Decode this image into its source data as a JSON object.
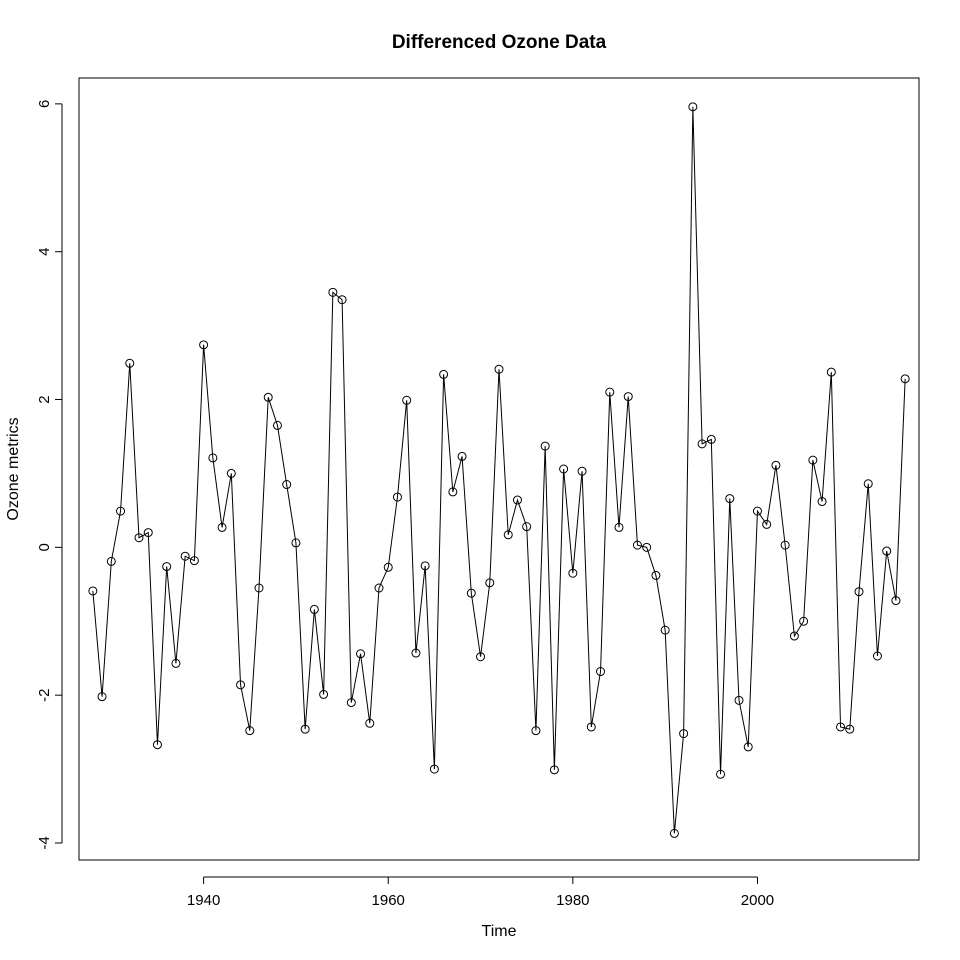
{
  "chart_data": {
    "type": "line",
    "title": "Differenced Ozone Data",
    "xlabel": "Time",
    "ylabel": "Ozone metrics",
    "xlim": [
      1926.5,
      2017.5
    ],
    "ylim": [
      -4.23,
      6.35
    ],
    "xticks": [
      1940,
      1960,
      1980,
      2000
    ],
    "yticks": [
      -4,
      -2,
      0,
      2,
      4,
      6
    ],
    "grid": false,
    "markers": "open-circle",
    "line_color": "#000000",
    "series": [
      {
        "x": [
          1928,
          1929,
          1930,
          1931,
          1932,
          1933,
          1934,
          1935,
          1936,
          1937,
          1938,
          1939,
          1940,
          1941,
          1942,
          1943,
          1944,
          1945,
          1946,
          1947,
          1948,
          1949,
          1950,
          1951,
          1952,
          1953,
          1954,
          1955,
          1956,
          1957,
          1958,
          1959,
          1960,
          1961,
          1962,
          1963,
          1964,
          1965,
          1966,
          1967,
          1968,
          1969,
          1970,
          1971,
          1972,
          1973,
          1974,
          1975,
          1976,
          1977,
          1978,
          1979,
          1980,
          1981,
          1982,
          1983,
          1984,
          1985,
          1986,
          1987,
          1988,
          1989,
          1990,
          1991,
          1992,
          1993,
          1994,
          1995,
          1996,
          1997,
          1998,
          1999,
          2000,
          2001,
          2002,
          2003,
          2004,
          2005,
          2006,
          2007,
          2008,
          2009,
          2010,
          2011,
          2012,
          2013,
          2014,
          2015,
          2016
        ],
        "values": [
          -0.59,
          -2.02,
          -0.19,
          0.49,
          2.49,
          0.13,
          0.2,
          -2.67,
          -0.26,
          -1.57,
          -0.12,
          -0.18,
          2.74,
          1.21,
          0.27,
          1.0,
          -1.86,
          -2.48,
          -0.55,
          2.03,
          1.65,
          0.85,
          0.06,
          -2.46,
          -0.84,
          -1.99,
          3.45,
          3.35,
          -2.1,
          -1.44,
          -2.38,
          -0.55,
          -0.27,
          0.68,
          1.99,
          -1.43,
          -0.25,
          -3.0,
          2.34,
          0.75,
          1.23,
          -0.62,
          -1.48,
          -0.48,
          2.41,
          0.17,
          0.64,
          0.28,
          -2.48,
          1.37,
          -3.01,
          1.06,
          -0.35,
          1.03,
          -2.43,
          -1.68,
          2.1,
          0.27,
          2.04,
          0.03,
          0.0,
          -0.38,
          -1.12,
          -3.87,
          -2.52,
          5.96,
          1.4,
          1.46,
          -3.07,
          0.66,
          -2.07,
          -2.7,
          0.49,
          0.31,
          1.11,
          0.03,
          -1.2,
          -1.0,
          1.18,
          0.62,
          2.37,
          -2.43,
          -2.46,
          -0.6,
          0.86,
          -1.47,
          -0.05,
          -0.72,
          2.28
        ]
      }
    ]
  }
}
